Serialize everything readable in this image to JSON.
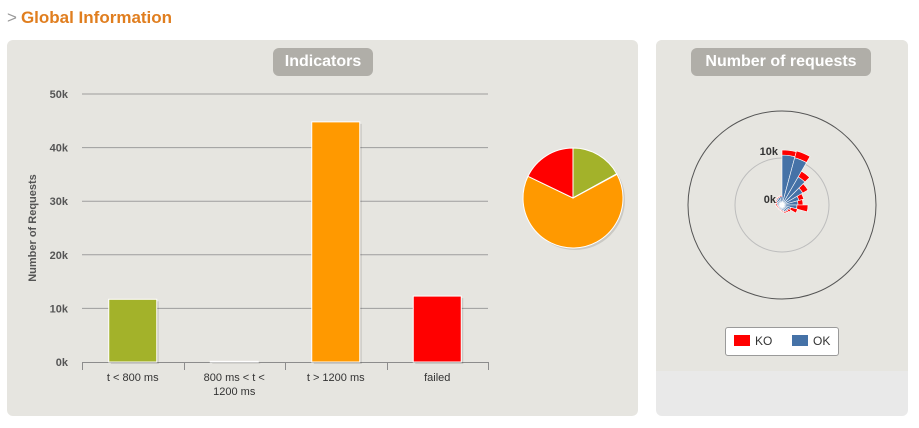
{
  "page": {
    "arrow": ">",
    "title": "Global Information"
  },
  "panels": {
    "indicators_title": "Indicators",
    "requests_title": "Number of requests"
  },
  "colors": {
    "green": "#a3b22a",
    "gray": "#bbbbbb",
    "orange": "#ff9900",
    "red": "#ff0000",
    "ko": "#ff0000",
    "ok": "#4572a7"
  },
  "chart_data": [
    {
      "type": "bar",
      "ylabel": "Number of Requests",
      "ylim": [
        0,
        50000
      ],
      "yticks": [
        0,
        10000,
        20000,
        30000,
        40000,
        50000
      ],
      "ytick_labels": [
        "0k",
        "10k",
        "20k",
        "30k",
        "40k",
        "50k"
      ],
      "categories": [
        "t < 800 ms",
        "800 ms < t < 1200 ms",
        "t > 1200 ms",
        "failed"
      ],
      "category_lines": [
        [
          "t < 800 ms"
        ],
        [
          "800 ms < t <",
          "1200 ms"
        ],
        [
          "t > 1200 ms"
        ],
        [
          "failed"
        ]
      ],
      "values": [
        11700,
        120,
        44800,
        12300
      ],
      "colors": [
        "#a3b22a",
        "#bbbbbb",
        "#ff9900",
        "#ff0000"
      ]
    },
    {
      "type": "pie",
      "values": [
        11700,
        120,
        44800,
        12300
      ],
      "colors": [
        "#a3b22a",
        "#bbbbbb",
        "#ff9900",
        "#ff0000"
      ]
    },
    {
      "type": "polar-bar",
      "radial_ticks": [
        "0k",
        "10k"
      ],
      "radial_max": 10000,
      "legend": [
        "KO",
        "OK"
      ],
      "series": [
        {
          "name": "OK",
          "values": [
            10000,
            9800,
            6500,
            4800,
            3500,
            3200,
            3000,
            1800,
            1500,
            1500,
            1400,
            1200,
            1000,
            900,
            900,
            800,
            800,
            900,
            1000,
            1100,
            1300,
            1500,
            1600,
            1700
          ]
        },
        {
          "name": "KO",
          "values": [
            1000,
            1400,
            1300,
            1200,
            1000,
            1000,
            2200,
            1400,
            500,
            300,
            300,
            200,
            200,
            200,
            200,
            200,
            300,
            300,
            300,
            300,
            200,
            200,
            200,
            200
          ]
        }
      ]
    }
  ],
  "legend": {
    "ko": "KO",
    "ok": "OK"
  }
}
